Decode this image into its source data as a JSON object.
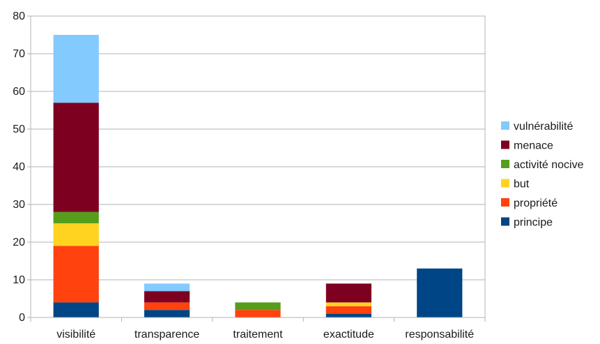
{
  "chart_data": {
    "type": "bar",
    "stacked": true,
    "title": "",
    "xlabel": "",
    "ylabel": "",
    "categories": [
      "visibilité",
      "transparence",
      "traitement",
      "exactitude",
      "responsabilité"
    ],
    "series": [
      {
        "name": "principe",
        "color": "#004586",
        "values": [
          4,
          2,
          0,
          1,
          13
        ]
      },
      {
        "name": "propriété",
        "color": "#ff420e",
        "values": [
          15,
          2,
          2,
          2,
          0
        ]
      },
      {
        "name": "but",
        "color": "#ffd320",
        "values": [
          6,
          0,
          0,
          1,
          0
        ]
      },
      {
        "name": "activité nocive",
        "color": "#579d1c",
        "values": [
          3,
          0,
          2,
          0,
          0
        ]
      },
      {
        "name": "menace",
        "color": "#7e0021",
        "values": [
          29,
          3,
          0,
          5,
          0
        ]
      },
      {
        "name": "vulnérabilité",
        "color": "#83caff",
        "values": [
          18,
          2,
          0,
          0,
          0
        ]
      }
    ],
    "ylim": [
      0,
      80
    ],
    "yticks": [
      0,
      10,
      20,
      30,
      40,
      50,
      60,
      70,
      80
    ],
    "grid": true,
    "legend_position": "right"
  }
}
